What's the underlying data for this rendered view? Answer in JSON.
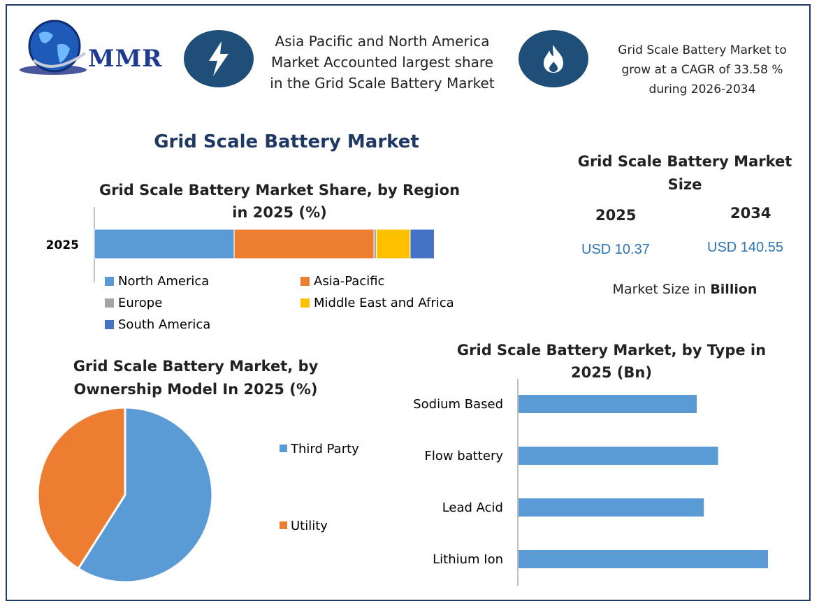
{
  "brand": {
    "logo_text": "MMR"
  },
  "header": {
    "info_1": "Asia Pacific and North America Market Accounted largest share in the Grid Scale Battery Market",
    "info_2": "Grid Scale Battery Market to grow at a CAGR of 33.58 % during 2026-2034",
    "icon_1": "lightning-icon",
    "icon_2": "flame-icon"
  },
  "main_title": "Grid Scale Battery Market",
  "market_size": {
    "title": "Grid Scale Battery Market Size",
    "year_1": "2025",
    "year_2": "2034",
    "value_1": "USD 10.37",
    "value_2": "USD 140.55",
    "unit_note_prefix": "Market Size in",
    "unit_note_bold": "Billion"
  },
  "colors": {
    "north_america": "#5b9bd5",
    "asia_pacific": "#ed7d31",
    "europe": "#a5a5a5",
    "middle_east_africa": "#ffc000",
    "south_america": "#4472c4",
    "navy": "#1f4e79"
  },
  "chart_data": [
    {
      "type": "bar",
      "orientation": "horizontal",
      "stacked": true,
      "title": "Grid Scale Battery Market Share, by Region in 2025 (%)",
      "categories": [
        "2025"
      ],
      "series": [
        {
          "name": "North America",
          "values": [
            29
          ],
          "color": "#5b9bd5"
        },
        {
          "name": "Asia-Pacific",
          "values": [
            29
          ],
          "color": "#ed7d31"
        },
        {
          "name": "Europe",
          "values": [
            0.5
          ],
          "color": "#a5a5a5"
        },
        {
          "name": "Middle East and Africa",
          "values": [
            7
          ],
          "color": "#ffc000"
        },
        {
          "name": "South America",
          "values": [
            5
          ],
          "color": "#4472c4"
        }
      ],
      "xlim": [
        0,
        100
      ],
      "legend_position": "bottom",
      "grid": false
    },
    {
      "type": "pie",
      "title": "Grid Scale Battery Market, by Ownership Model In 2025 (%)",
      "labels": [
        "Third Party",
        "Utility"
      ],
      "values": [
        59,
        41
      ],
      "colors": [
        "#5b9bd5",
        "#ed7d31"
      ],
      "legend_position": "right"
    },
    {
      "type": "bar",
      "orientation": "horizontal",
      "title": "Grid Scale Battery Market, by Type in 2025 (Bn)",
      "categories": [
        "Sodium Based",
        "Flow battery",
        "Lead Acid",
        "Lithium Ion"
      ],
      "values": [
        2.5,
        2.8,
        2.6,
        3.5
      ],
      "xlim": [
        0,
        4
      ],
      "color": "#5b9bd5",
      "grid": false
    }
  ]
}
